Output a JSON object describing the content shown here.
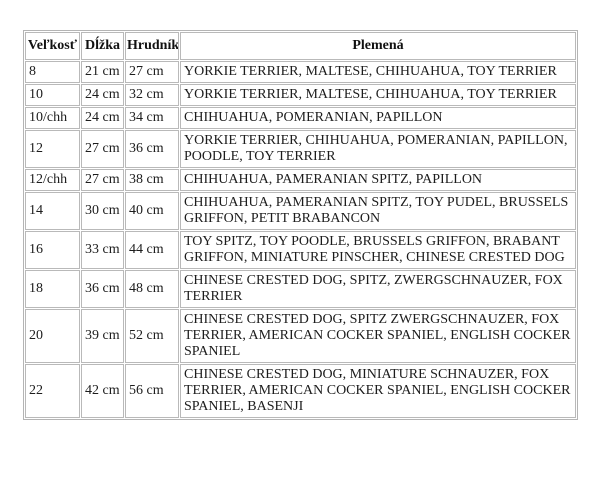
{
  "table": {
    "headers": [
      {
        "label": "Veľkosť"
      },
      {
        "label": "Dĺžka"
      },
      {
        "label": "Hrudník"
      },
      {
        "label": "Plemená"
      }
    ],
    "rows": [
      {
        "size": "8",
        "length": "21 cm",
        "chest": "27 cm",
        "breeds": "YORKIE TERRIER, MALTESE, CHIHUAHUA, TOY TERRIER"
      },
      {
        "size": "10",
        "length": "24 cm",
        "chest": "32 cm",
        "breeds": "YORKIE TERRIER, MALTESE, CHIHUAHUA, TOY TERRIER"
      },
      {
        "size": "10/chh",
        "length": "24 cm",
        "chest": "34 cm",
        "breeds": "CHIHUAHUA, POMERANIAN, PAPILLON"
      },
      {
        "size": "12",
        "length": "27 cm",
        "chest": "36 cm",
        "breeds": "YORKIE TERRIER, CHIHUAHUA, POMERANIAN, PAPILLON, POODLE, TOY TERRIER"
      },
      {
        "size": "12/chh",
        "length": "27 cm",
        "chest": "38 cm",
        "breeds": "CHIHUAHUA, PAMERANIAN SPITZ, PAPILLON"
      },
      {
        "size": "14",
        "length": "30 cm",
        "chest": "40 cm",
        "breeds": "CHIHUAHUA, PAMERANIAN SPITZ, TOY PUDEL, BRUSSELS GRIFFON, PETIT BRABANCON"
      },
      {
        "size": "16",
        "length": "33 cm",
        "chest": "44 cm",
        "breeds": "TOY SPITZ, TOY POODLE, BRUSSELS GRIFFON, BRABANT GRIFFON, MINIATURE PINSCHER, CHINESE CRESTED DOG"
      },
      {
        "size": "18",
        "length": "36 cm",
        "chest": "48 cm",
        "breeds": "CHINESE CRESTED DOG, SPITZ, ZWERGSCHNAUZER, FOX TERRIER"
      },
      {
        "size": "20",
        "length": "39 cm",
        "chest": "52 cm",
        "breeds": "CHINESE CRESTED DOG, SPITZ ZWERGSCHNAUZER, FOX TERRIER, AMERICAN COCKER SPANIEL, ENGLISH COCKER SPANIEL"
      },
      {
        "size": "22",
        "length": "42 cm",
        "chest": "56 cm",
        "breeds": "CHINESE CRESTED DOG, MINIATURE SCHNAUZER, FOX TERRIER, AMERICAN COCKER SPANIEL, ENGLISH COCKER SPANIEL, BASENJI"
      }
    ],
    "colors": {
      "border": "#b9b9b9",
      "text": "#1c1c1c",
      "background": "#ffffff"
    }
  }
}
